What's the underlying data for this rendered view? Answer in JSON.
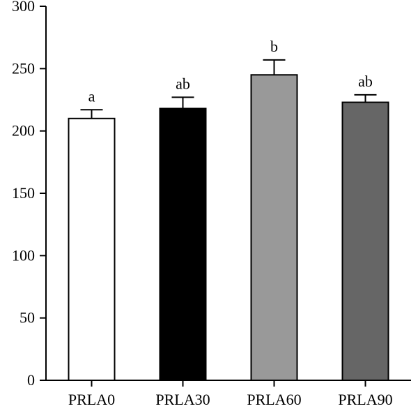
{
  "chart_data": {
    "type": "bar",
    "title": "",
    "xlabel": "",
    "ylabel": "",
    "ylim": [
      0,
      300
    ],
    "yticks": [
      0,
      50,
      100,
      150,
      200,
      250,
      300
    ],
    "grid": false,
    "categories": [
      "PRLA0",
      "PRLA30",
      "PRLA60",
      "PRLA90"
    ],
    "values": [
      210,
      218,
      245,
      223
    ],
    "errors": [
      7,
      9,
      12,
      6
    ],
    "significance_labels": [
      "a",
      "ab",
      "b",
      "ab"
    ],
    "bar_colors": [
      "#ffffff",
      "#000000",
      "#999999",
      "#666666"
    ]
  }
}
